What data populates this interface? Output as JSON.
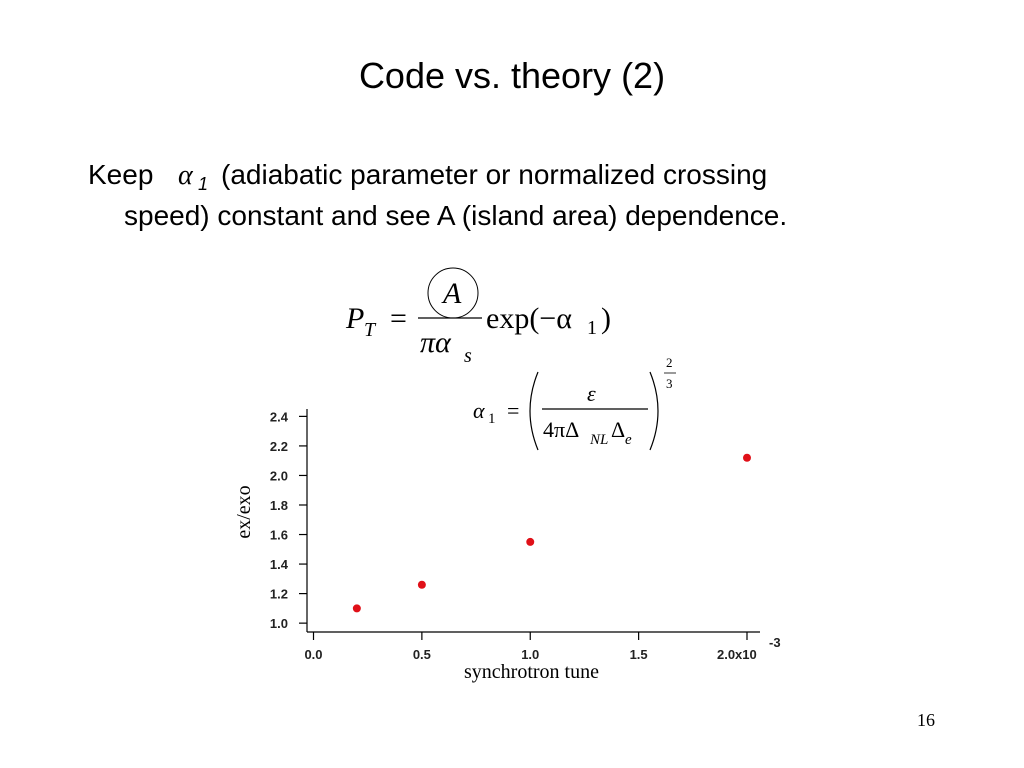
{
  "title": "Code vs. theory (2)",
  "body": {
    "lead": "Keep",
    "symbol": "α",
    "subscript": "1",
    "line1": "(adiabatic parameter or normalized crossing",
    "line2": "speed) constant and see A (island area) dependence."
  },
  "equation1": {
    "lhs": "P",
    "lhs_sub": "T",
    "equals": "=",
    "numerator": "A",
    "denominator": "πα",
    "denominator_sub": "s",
    "factor": "exp(−α",
    "factor_sub": "1",
    "close": ")"
  },
  "equation2": {
    "lhs": "α",
    "lhs_sub": "1",
    "equals": "=",
    "numerator": "ε",
    "denominator": "4πΔ",
    "denominator_sub": "NL",
    "denominator2": "Δ",
    "denominator2_sub": "e",
    "exponent_num": "2",
    "exponent_den": "3"
  },
  "page_number": "16",
  "chart_data": {
    "type": "scatter",
    "xlabel": "synchrotron tune",
    "ylabel": "ex/exo",
    "x": [
      0.2,
      0.5,
      1.0,
      2.0
    ],
    "values": [
      1.1,
      1.26,
      1.55,
      2.12
    ],
    "color": "#e01018",
    "xlim": [
      -0.03,
      2.06
    ],
    "ylim": [
      0.94,
      2.45
    ],
    "xticks": [
      {
        "value": 0,
        "label": "0.0"
      },
      0.5,
      {
        "value": 1,
        "label": "1.0"
      },
      1.5,
      {
        "value": 2,
        "label": "2.0x10"
      }
    ],
    "x_exponent": "-3",
    "yticks": [
      {
        "value": 1,
        "label": "1.0"
      },
      1.2,
      1.4,
      1.6,
      1.8,
      {
        "value": 2,
        "label": "2.0"
      },
      2.2,
      2.4
    ]
  }
}
